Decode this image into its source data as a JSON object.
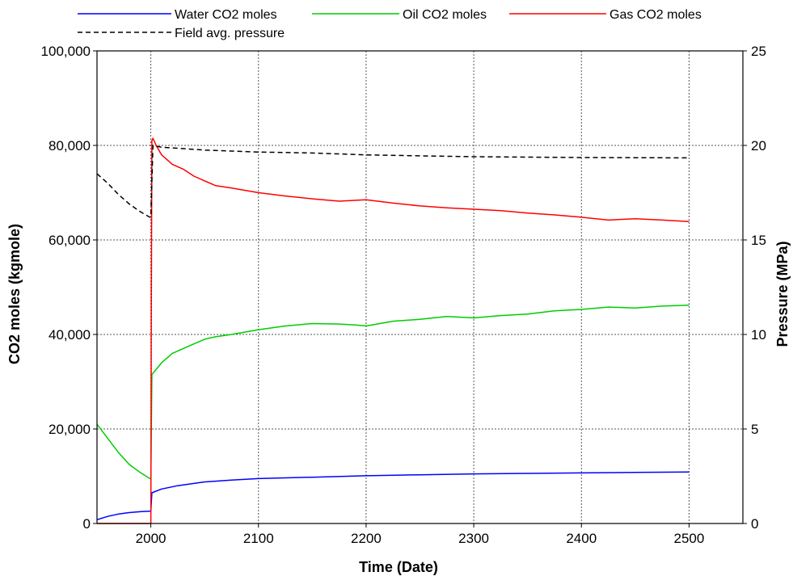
{
  "chart_data": {
    "type": "line",
    "title": "",
    "xlabel": "Time (Date)",
    "ylabel": "CO2 moles (kgmole)",
    "y2label": "Pressure (MPa)",
    "xlim": [
      1950,
      2550
    ],
    "ylim": [
      0,
      100000
    ],
    "y2lim": [
      0,
      25
    ],
    "x_ticks": [
      2000,
      2100,
      2200,
      2300,
      2400,
      2500
    ],
    "x_tick_labels": [
      "2000",
      "2100",
      "2200",
      "2300",
      "2400",
      "2500"
    ],
    "y_ticks": [
      0,
      20000,
      40000,
      60000,
      80000,
      100000
    ],
    "y_tick_labels": [
      "0",
      "20,000",
      "40,000",
      "60,000",
      "80,000",
      "100,000"
    ],
    "y2_ticks": [
      0,
      5,
      10,
      15,
      20,
      25
    ],
    "y2_tick_labels": [
      "0",
      "5",
      "10",
      "15",
      "20",
      "25"
    ],
    "grid": true,
    "legend_position": "top",
    "series": [
      {
        "name": "Water CO2 moles",
        "axis": "left",
        "color": "#0000ff",
        "dash": "solid",
        "x": [
          1950,
          1960,
          1970,
          1980,
          1990,
          1999,
          2000,
          2001,
          2010,
          2025,
          2050,
          2075,
          2100,
          2150,
          2200,
          2250,
          2300,
          2350,
          2400,
          2450,
          2500
        ],
        "y": [
          800,
          1500,
          2000,
          2300,
          2500,
          2600,
          2600,
          6500,
          7300,
          8000,
          8800,
          9200,
          9500,
          9800,
          10100,
          10300,
          10500,
          10600,
          10700,
          10800,
          10900
        ]
      },
      {
        "name": "Oil CO2 moles",
        "axis": "left",
        "color": "#00cc00",
        "dash": "solid",
        "x": [
          1950,
          1960,
          1970,
          1980,
          1990,
          1999,
          2000,
          2001,
          2010,
          2020,
          2030,
          2040,
          2050,
          2060,
          2075,
          2100,
          2125,
          2150,
          2175,
          2190,
          2200,
          2225,
          2250,
          2275,
          2300,
          2325,
          2350,
          2375,
          2400,
          2425,
          2450,
          2475,
          2500
        ],
        "y": [
          21000,
          18000,
          15000,
          12500,
          10800,
          9500,
          9500,
          31500,
          34000,
          36000,
          37000,
          38000,
          39000,
          39500,
          40000,
          41000,
          41800,
          42300,
          42200,
          42000,
          41800,
          42800,
          43200,
          43800,
          43500,
          44000,
          44300,
          45000,
          45300,
          45800,
          45600,
          46000,
          46200
        ]
      },
      {
        "name": "Gas CO2 moles",
        "axis": "left",
        "color": "#ff0000",
        "dash": "solid",
        "x": [
          1950,
          1999,
          2000,
          2000.5,
          2001,
          2002,
          2005,
          2010,
          2020,
          2030,
          2040,
          2050,
          2060,
          2075,
          2100,
          2125,
          2150,
          2175,
          2200,
          2225,
          2250,
          2275,
          2300,
          2325,
          2350,
          2375,
          2400,
          2425,
          2450,
          2475,
          2500
        ],
        "y": [
          0,
          0,
          0,
          45000,
          81000,
          81500,
          80000,
          78000,
          76000,
          75000,
          73500,
          72500,
          71500,
          71000,
          70000,
          69300,
          68700,
          68200,
          68500,
          67800,
          67200,
          66800,
          66500,
          66200,
          65700,
          65300,
          64800,
          64200,
          64500,
          64200,
          63900
        ]
      },
      {
        "name": "Field avg. pressure",
        "axis": "right",
        "color": "#000000",
        "dash": "dashed",
        "x": [
          1950,
          1960,
          1970,
          1980,
          1990,
          1999,
          2000,
          2002,
          2010,
          2025,
          2050,
          2100,
          2150,
          2200,
          2250,
          2300,
          2350,
          2400,
          2450,
          2500
        ],
        "y": [
          18.5,
          18.0,
          17.4,
          16.9,
          16.5,
          16.2,
          16.2,
          20.0,
          19.9,
          19.85,
          19.75,
          19.65,
          19.6,
          19.5,
          19.45,
          19.4,
          19.38,
          19.36,
          19.35,
          19.34
        ]
      }
    ]
  }
}
